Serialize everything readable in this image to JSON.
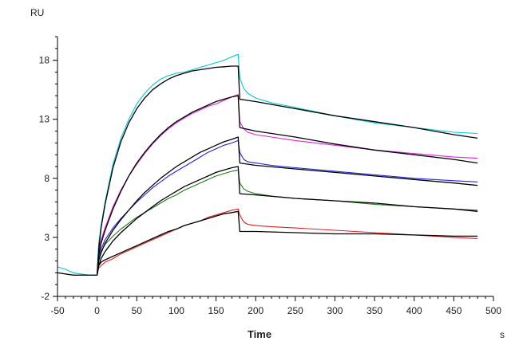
{
  "chart_data": {
    "type": "line",
    "xlabel": "Time",
    "x_unit": "s",
    "ylabel": "RU",
    "xlim": [
      -50,
      500
    ],
    "ylim": [
      -2,
      20
    ],
    "x_ticks": [
      -50,
      0,
      50,
      100,
      150,
      200,
      250,
      300,
      350,
      400,
      450,
      500
    ],
    "y_ticks": [
      -2,
      3,
      8,
      13,
      18
    ],
    "grid": false,
    "legend": "none",
    "series": [
      {
        "color": "#00c8d2",
        "role": "measured",
        "x": [
          -50,
          -40,
          -30,
          -10,
          0,
          2,
          5,
          10,
          20,
          30,
          40,
          50,
          60,
          70,
          80,
          90,
          100,
          110,
          120,
          130,
          140,
          150,
          160,
          170,
          178,
          180,
          185,
          190,
          200,
          220,
          250,
          300,
          350,
          400,
          450,
          480
        ],
        "y": [
          0.5,
          0.3,
          0.0,
          -0.2,
          -0.2,
          2.5,
          4.0,
          6.0,
          9.2,
          11.4,
          13.0,
          14.3,
          15.2,
          15.9,
          16.4,
          16.7,
          16.9,
          17.0,
          17.2,
          17.4,
          17.6,
          17.8,
          18.0,
          18.3,
          18.5,
          16.5,
          15.6,
          15.2,
          14.8,
          14.4,
          14.0,
          13.3,
          12.7,
          12.3,
          11.9,
          11.8
        ]
      },
      {
        "color": "#000000",
        "role": "fit",
        "x": [
          0,
          2,
          5,
          10,
          20,
          30,
          40,
          50,
          60,
          70,
          80,
          90,
          100,
          110,
          120,
          130,
          140,
          150,
          160,
          170,
          178,
          180,
          200,
          250,
          300,
          350,
          400,
          450,
          480
        ],
        "y": [
          -0.2,
          2.0,
          3.8,
          5.8,
          8.9,
          11.1,
          12.7,
          13.9,
          14.8,
          15.5,
          16.0,
          16.4,
          16.7,
          16.9,
          17.1,
          17.2,
          17.3,
          17.4,
          17.45,
          17.5,
          17.5,
          14.7,
          14.5,
          13.9,
          13.3,
          12.8,
          12.3,
          11.7,
          11.4
        ]
      },
      {
        "color": "#e020e0",
        "role": "measured",
        "x": [
          0,
          2,
          5,
          10,
          20,
          30,
          40,
          50,
          60,
          70,
          80,
          90,
          100,
          110,
          120,
          130,
          140,
          150,
          160,
          170,
          178,
          180,
          185,
          190,
          200,
          220,
          250,
          300,
          350,
          400,
          450,
          480
        ],
        "y": [
          -0.2,
          1.8,
          2.8,
          3.8,
          5.6,
          7.0,
          8.2,
          9.2,
          10.1,
          10.9,
          11.6,
          12.2,
          12.7,
          13.1,
          13.5,
          13.8,
          14.1,
          14.3,
          14.6,
          14.9,
          15.1,
          12.8,
          12.2,
          11.9,
          11.7,
          11.5,
          11.2,
          10.8,
          10.4,
          10.1,
          9.8,
          9.7
        ]
      },
      {
        "color": "#000000",
        "role": "fit",
        "x": [
          0,
          2,
          5,
          10,
          20,
          30,
          40,
          50,
          60,
          70,
          80,
          90,
          100,
          110,
          120,
          130,
          140,
          150,
          160,
          170,
          178,
          180,
          200,
          250,
          300,
          350,
          400,
          450,
          480
        ],
        "y": [
          -0.2,
          1.5,
          2.5,
          3.6,
          5.4,
          6.9,
          8.2,
          9.3,
          10.2,
          11.0,
          11.7,
          12.3,
          12.8,
          13.2,
          13.6,
          13.9,
          14.2,
          14.5,
          14.7,
          14.9,
          15.0,
          12.3,
          12.0,
          11.5,
          10.9,
          10.4,
          10.0,
          9.6,
          9.3
        ]
      },
      {
        "color": "#2424d8",
        "role": "measured",
        "x": [
          0,
          2,
          5,
          10,
          20,
          30,
          40,
          50,
          60,
          70,
          80,
          90,
          100,
          110,
          120,
          130,
          140,
          150,
          160,
          170,
          178,
          180,
          185,
          190,
          200,
          220,
          250,
          300,
          350,
          400,
          450,
          480
        ],
        "y": [
          -0.2,
          1.2,
          2.0,
          2.8,
          3.8,
          4.6,
          5.3,
          6.0,
          6.6,
          7.2,
          7.7,
          8.2,
          8.6,
          9.0,
          9.4,
          9.8,
          10.2,
          10.5,
          10.8,
          11.0,
          11.2,
          10.2,
          9.6,
          9.4,
          9.3,
          9.1,
          8.9,
          8.6,
          8.3,
          8.0,
          7.8,
          7.7
        ]
      },
      {
        "color": "#000000",
        "role": "fit",
        "x": [
          0,
          2,
          5,
          10,
          20,
          30,
          40,
          50,
          60,
          70,
          80,
          90,
          100,
          110,
          120,
          130,
          140,
          150,
          160,
          170,
          178,
          180,
          200,
          250,
          300,
          350,
          400,
          450,
          480
        ],
        "y": [
          -0.2,
          1.0,
          1.7,
          2.5,
          3.6,
          4.5,
          5.3,
          6.1,
          6.8,
          7.4,
          8.0,
          8.5,
          9.0,
          9.4,
          9.8,
          10.2,
          10.5,
          10.8,
          11.1,
          11.3,
          11.5,
          9.3,
          9.1,
          8.8,
          8.5,
          8.2,
          7.9,
          7.6,
          7.4
        ]
      },
      {
        "color": "#1f7a1f",
        "role": "measured",
        "x": [
          0,
          2,
          5,
          10,
          20,
          30,
          40,
          50,
          60,
          70,
          80,
          90,
          100,
          110,
          120,
          130,
          140,
          150,
          160,
          170,
          178,
          180,
          185,
          190,
          200,
          220,
          250,
          300,
          350,
          400,
          450,
          480
        ],
        "y": [
          -0.2,
          1.0,
          1.8,
          2.4,
          3.1,
          3.7,
          4.2,
          4.7,
          5.1,
          5.5,
          5.9,
          6.3,
          6.6,
          7.0,
          7.3,
          7.6,
          7.9,
          8.2,
          8.4,
          8.6,
          8.7,
          7.6,
          7.1,
          6.9,
          6.7,
          6.5,
          6.3,
          6.1,
          5.8,
          5.6,
          5.4,
          5.3
        ]
      },
      {
        "color": "#000000",
        "role": "fit",
        "x": [
          0,
          2,
          5,
          10,
          20,
          30,
          40,
          50,
          60,
          70,
          80,
          90,
          100,
          110,
          120,
          130,
          140,
          150,
          160,
          170,
          178,
          180,
          200,
          250,
          300,
          350,
          400,
          450,
          480
        ],
        "y": [
          -0.2,
          0.6,
          1.2,
          1.8,
          2.7,
          3.4,
          4.0,
          4.6,
          5.1,
          5.6,
          6.1,
          6.5,
          6.9,
          7.3,
          7.6,
          7.9,
          8.2,
          8.5,
          8.7,
          8.9,
          9.0,
          6.7,
          6.6,
          6.3,
          6.1,
          5.9,
          5.6,
          5.4,
          5.2
        ]
      },
      {
        "color": "#e02020",
        "role": "measured",
        "x": [
          0,
          2,
          5,
          10,
          20,
          30,
          40,
          50,
          60,
          70,
          80,
          90,
          100,
          110,
          120,
          130,
          140,
          150,
          160,
          170,
          178,
          180,
          185,
          190,
          200,
          220,
          250,
          300,
          350,
          400,
          450,
          480
        ],
        "y": [
          -0.2,
          0.4,
          0.6,
          0.9,
          1.2,
          1.6,
          1.9,
          2.2,
          2.5,
          2.8,
          3.1,
          3.4,
          3.7,
          4.0,
          4.2,
          4.4,
          4.7,
          4.9,
          5.1,
          5.3,
          5.4,
          4.9,
          4.3,
          4.1,
          4.0,
          3.9,
          3.8,
          3.6,
          3.4,
          3.2,
          3.0,
          2.9
        ]
      },
      {
        "color": "#000000",
        "role": "fit",
        "x": [
          0,
          2,
          5,
          10,
          20,
          30,
          40,
          50,
          60,
          70,
          80,
          90,
          100,
          110,
          120,
          130,
          140,
          150,
          160,
          170,
          178,
          180,
          200,
          250,
          300,
          350,
          400,
          450,
          480
        ],
        "y": [
          -0.2,
          0.6,
          0.9,
          1.1,
          1.4,
          1.7,
          2.0,
          2.3,
          2.6,
          2.9,
          3.2,
          3.5,
          3.7,
          4.0,
          4.2,
          4.4,
          4.6,
          4.8,
          5.0,
          5.1,
          5.2,
          3.5,
          3.5,
          3.4,
          3.3,
          3.3,
          3.2,
          3.1,
          3.1
        ]
      },
      {
        "color": "#000000",
        "role": "baseline",
        "x": [
          -50,
          -30,
          -10,
          0
        ],
        "y": [
          0.0,
          -0.2,
          -0.2,
          -0.2
        ]
      }
    ]
  }
}
